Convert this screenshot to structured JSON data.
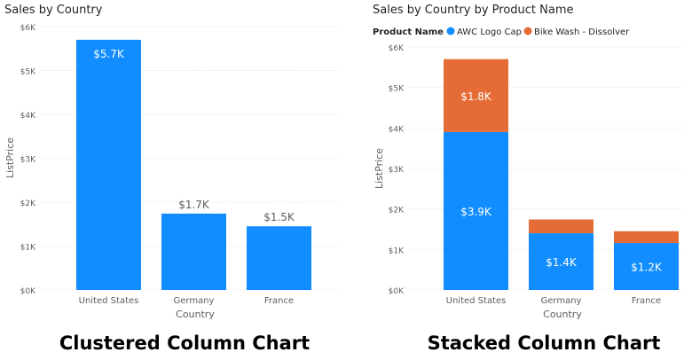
{
  "chart_data": [
    {
      "type": "bar",
      "title": "Sales by Country",
      "xlabel": "Country",
      "ylabel": "ListPrice",
      "categories": [
        "United States",
        "Germany",
        "France"
      ],
      "values": [
        5700,
        1740,
        1450
      ],
      "data_labels": [
        "$5.7K",
        "$1.7K",
        "$1.5K"
      ],
      "ylim": [
        0,
        6000
      ],
      "yticks": [
        0,
        1000,
        2000,
        3000,
        4000,
        5000,
        6000
      ],
      "ytick_labels": [
        "$0K",
        "$1K",
        "$2K",
        "$3K",
        "$4K",
        "$5K",
        "$6K"
      ],
      "color": "#118DFF",
      "grid": true,
      "caption": "Clustered Column Chart"
    },
    {
      "type": "bar",
      "stacked": true,
      "title": "Sales by Country by Product Name",
      "legend_title": "Product Name",
      "legend_position": "top-left",
      "xlabel": "Country",
      "ylabel": "ListPrice",
      "categories": [
        "United States",
        "Germany",
        "France"
      ],
      "series": [
        {
          "name": "AWC Logo Cap",
          "color": "#118DFF",
          "values": [
            3900,
            1400,
            1160
          ],
          "data_labels": [
            "$3.9K",
            "$1.4K",
            "$1.2K"
          ]
        },
        {
          "name": "Bike Wash - Dissolver",
          "color": "#E66C37",
          "values": [
            1800,
            340,
            290
          ],
          "data_labels": [
            "$1.8K",
            "",
            ""
          ]
        }
      ],
      "ylim": [
        0,
        6000
      ],
      "yticks": [
        0,
        1000,
        2000,
        3000,
        4000,
        5000,
        6000
      ],
      "ytick_labels": [
        "$0K",
        "$1K",
        "$2K",
        "$3K",
        "$4K",
        "$5K",
        "$6K"
      ],
      "grid": true,
      "caption": "Stacked Column Chart"
    }
  ]
}
